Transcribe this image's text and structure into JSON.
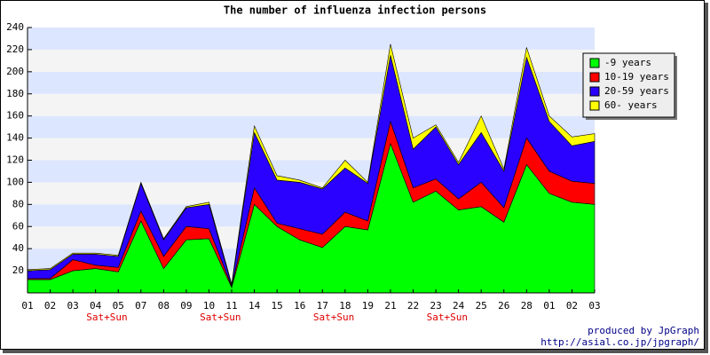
{
  "chart_data": {
    "type": "stacked_area",
    "title": "The number of influenza infection persons",
    "categories": [
      "01",
      "02",
      "03",
      "04",
      "05",
      "07",
      "08",
      "09",
      "10",
      "11",
      "14",
      "15",
      "16",
      "17",
      "18",
      "19",
      "21",
      "22",
      "23",
      "24",
      "25",
      "26",
      "28",
      "01",
      "02",
      "03"
    ],
    "series": [
      {
        "name": "-9 years",
        "color": "#00ff00",
        "values": [
          12,
          12,
          20,
          22,
          19,
          65,
          22,
          48,
          49,
          5,
          80,
          60,
          48,
          41,
          60,
          57,
          135,
          82,
          92,
          75,
          78,
          64,
          116,
          90,
          82,
          80
        ]
      },
      {
        "name": "10-19 years",
        "color": "#ff0000",
        "values": [
          1,
          1,
          10,
          3,
          4,
          9,
          11,
          12,
          9,
          1,
          15,
          3,
          10,
          12,
          13,
          8,
          20,
          13,
          11,
          10,
          22,
          13,
          24,
          20,
          19,
          19
        ]
      },
      {
        "name": "20-59 years",
        "color": "#2a00ff",
        "values": [
          7,
          8,
          5,
          10,
          10,
          25,
          15,
          17,
          22,
          1,
          50,
          39,
          42,
          41,
          40,
          34,
          60,
          35,
          47,
          31,
          45,
          33,
          73,
          45,
          32,
          38
        ]
      },
      {
        "name": "60- years",
        "color": "#ffff00",
        "values": [
          1,
          1,
          1,
          1,
          1,
          1,
          1,
          1,
          2,
          1,
          6,
          4,
          2,
          1,
          7,
          1,
          10,
          10,
          2,
          2,
          15,
          2,
          9,
          5,
          8,
          7
        ]
      }
    ],
    "ylim": [
      0,
      240
    ],
    "yticks": [
      20,
      40,
      60,
      80,
      100,
      120,
      140,
      160,
      180,
      200,
      220,
      240
    ],
    "annotations": [
      "Sat+Sun",
      "Sat+Sun",
      "Sat+Sun",
      "Sat+Sun"
    ],
    "footer": [
      "produced by JpGraph",
      "http://asial.co.jp/jpgraph/"
    ],
    "band_colors": [
      "#dde6ff",
      "#f4f4f4"
    ]
  }
}
